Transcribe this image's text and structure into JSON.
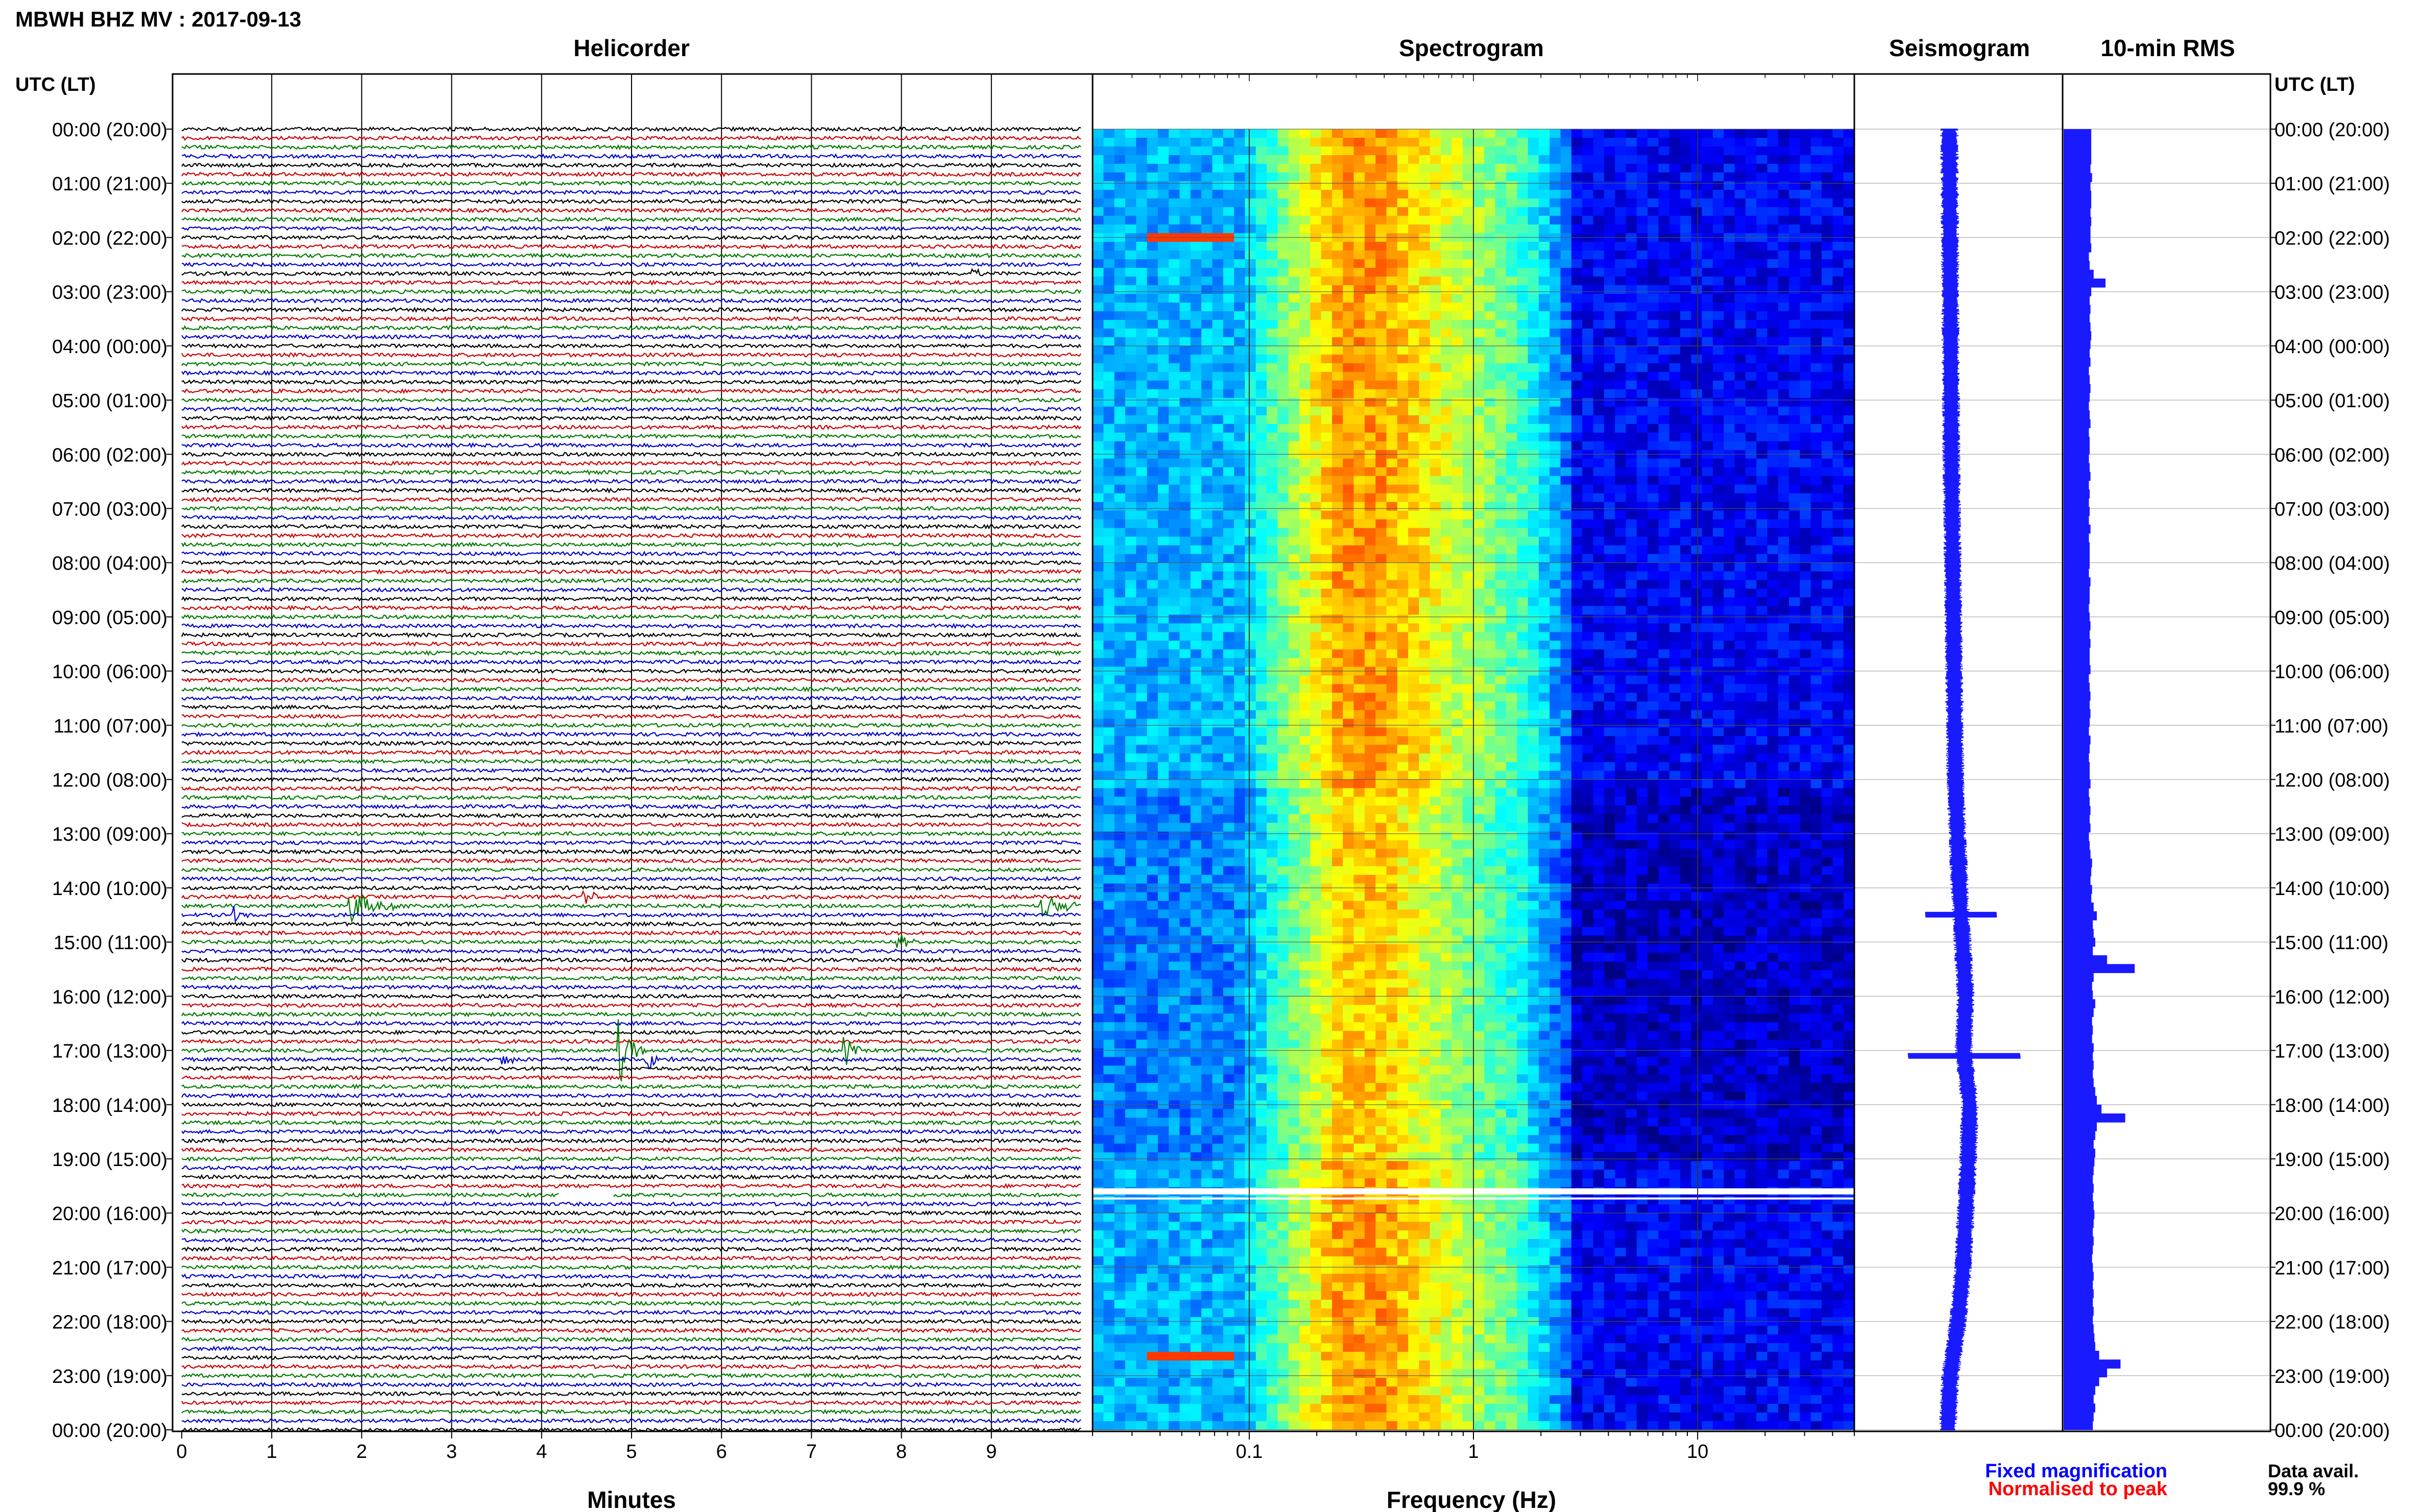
{
  "header": {
    "station_title": "MBWH BHZ MV : 2017-09-13",
    "utc_label_left": "UTC (LT)",
    "utc_label_right": "UTC (LT)"
  },
  "panels": {
    "helicorder_title": "Helicorder",
    "spectrogram_title": "Spectrogram",
    "seismogram_title": "Seismogram",
    "rms_title": "10-min RMS",
    "helicorder_xlabel": "Minutes",
    "spectrogram_xlabel": "Frequency (Hz)"
  },
  "legend": {
    "fixed_magnification": "Fixed magnification",
    "normalised_to_peak": "Normalised to peak",
    "fixed_color": "#0000ff",
    "normalised_color": "#ff0000"
  },
  "availability": {
    "label": "Data avail.",
    "value": "99.9 %"
  },
  "colors": {
    "trace_cycle": [
      "#000000",
      "#cc0000",
      "#007a00",
      "#0000cc"
    ],
    "rms_bar": "#1a1aff",
    "seismogram": "#1a1aff"
  },
  "chart_data": {
    "type": "heatmap",
    "time_ticks": [
      "00:00 (20:00)",
      "01:00 (21:00)",
      "02:00 (22:00)",
      "03:00 (23:00)",
      "04:00 (00:00)",
      "05:00 (01:00)",
      "06:00 (02:00)",
      "07:00 (03:00)",
      "08:00 (04:00)",
      "09:00 (05:00)",
      "10:00 (06:00)",
      "11:00 (07:00)",
      "12:00 (08:00)",
      "13:00 (09:00)",
      "14:00 (10:00)",
      "15:00 (11:00)",
      "16:00 (12:00)",
      "17:00 (13:00)",
      "18:00 (14:00)",
      "19:00 (15:00)",
      "20:00 (16:00)",
      "21:00 (17:00)",
      "22:00 (18:00)",
      "23:00 (19:00)",
      "00:00 (20:00)"
    ],
    "helicorder": {
      "x_ticks": [
        "0",
        "1",
        "2",
        "3",
        "4",
        "5",
        "6",
        "7",
        "8",
        "9"
      ],
      "xlim": [
        0,
        10
      ],
      "lines_per_hour": 6,
      "events": [
        {
          "hour": 14.3,
          "minute": 1.9,
          "amp": 3.5,
          "dur": 0.7
        },
        {
          "hour": 14.2,
          "minute": 4.5,
          "amp": 1.5,
          "dur": 0.3
        },
        {
          "hour": 14.3,
          "minute": 9.6,
          "amp": 2.5,
          "dur": 0.6
        },
        {
          "hour": 15.0,
          "minute": 8.0,
          "amp": 1.5,
          "dur": 0.2
        },
        {
          "hour": 14.5,
          "minute": 0.6,
          "amp": 1.5,
          "dur": 0.2
        },
        {
          "hour": 17.0,
          "minute": 4.9,
          "amp": 6,
          "dur": 0.3
        },
        {
          "hour": 17.1,
          "minute": 5.2,
          "amp": 2,
          "dur": 0.3
        },
        {
          "hour": 17.0,
          "minute": 7.4,
          "amp": 3,
          "dur": 0.2
        },
        {
          "hour": 17.1,
          "minute": 3.6,
          "amp": 1.3,
          "dur": 0.2
        },
        {
          "hour": 2.6,
          "minute": 8.8,
          "amp": 1.5,
          "dur": 0.2
        }
      ],
      "gap": {
        "hour": 19.6,
        "minute_start": 4.2,
        "minute_end": 4.8
      }
    },
    "spectrogram": {
      "x_ticks": [
        "0.1",
        "1",
        "10"
      ],
      "x_tick_values": [
        0.1,
        1,
        10
      ],
      "xlim": [
        0.02,
        50
      ],
      "log_x": true
    },
    "rms": {
      "description_values": [
        0.35,
        0.35,
        0.35,
        0.35,
        0.34,
        0.36,
        0.34,
        0.35,
        0.35,
        0.34,
        0.35,
        0.34,
        0.34,
        0.35,
        0.32,
        0.33,
        0.38,
        0.53,
        0.35,
        0.33,
        0.34,
        0.33,
        0.34,
        0.35,
        0.34,
        0.33,
        0.34,
        0.32,
        0.33,
        0.34,
        0.33,
        0.32,
        0.33,
        0.34,
        0.32,
        0.33,
        0.33,
        0.32,
        0.33,
        0.34,
        0.32,
        0.33,
        0.32,
        0.33,
        0.32,
        0.34,
        0.32,
        0.33,
        0.33,
        0.33,
        0.32,
        0.34,
        0.33,
        0.33,
        0.32,
        0.33,
        0.34,
        0.33,
        0.34,
        0.33,
        0.33,
        0.34,
        0.32,
        0.33,
        0.34,
        0.33,
        0.34,
        0.33,
        0.32,
        0.34,
        0.33,
        0.32,
        0.33,
        0.33,
        0.34,
        0.32,
        0.33,
        0.34,
        0.33,
        0.34,
        0.32,
        0.33,
        0.34,
        0.36,
        0.35,
        0.34,
        0.36,
        0.35,
        0.38,
        0.42,
        0.37,
        0.38,
        0.4,
        0.37,
        0.55,
        0.9,
        0.38,
        0.36,
        0.37,
        0.4,
        0.38,
        0.36,
        0.37,
        0.36,
        0.38,
        0.37,
        0.38,
        0.37,
        0.38,
        0.4,
        0.42,
        0.48,
        0.78,
        0.42,
        0.4,
        0.38,
        0.4,
        0.39,
        0.38,
        0.37,
        0.38,
        0.37,
        0.38,
        0.39,
        0.38,
        0.37,
        0.38,
        0.37,
        0.36,
        0.37,
        0.38,
        0.37,
        0.38,
        0.37,
        0.38,
        0.37,
        0.38,
        0.39,
        0.4,
        0.45,
        0.72,
        0.55,
        0.45,
        0.4,
        0.38,
        0.4,
        0.38,
        0.37
      ]
    }
  }
}
